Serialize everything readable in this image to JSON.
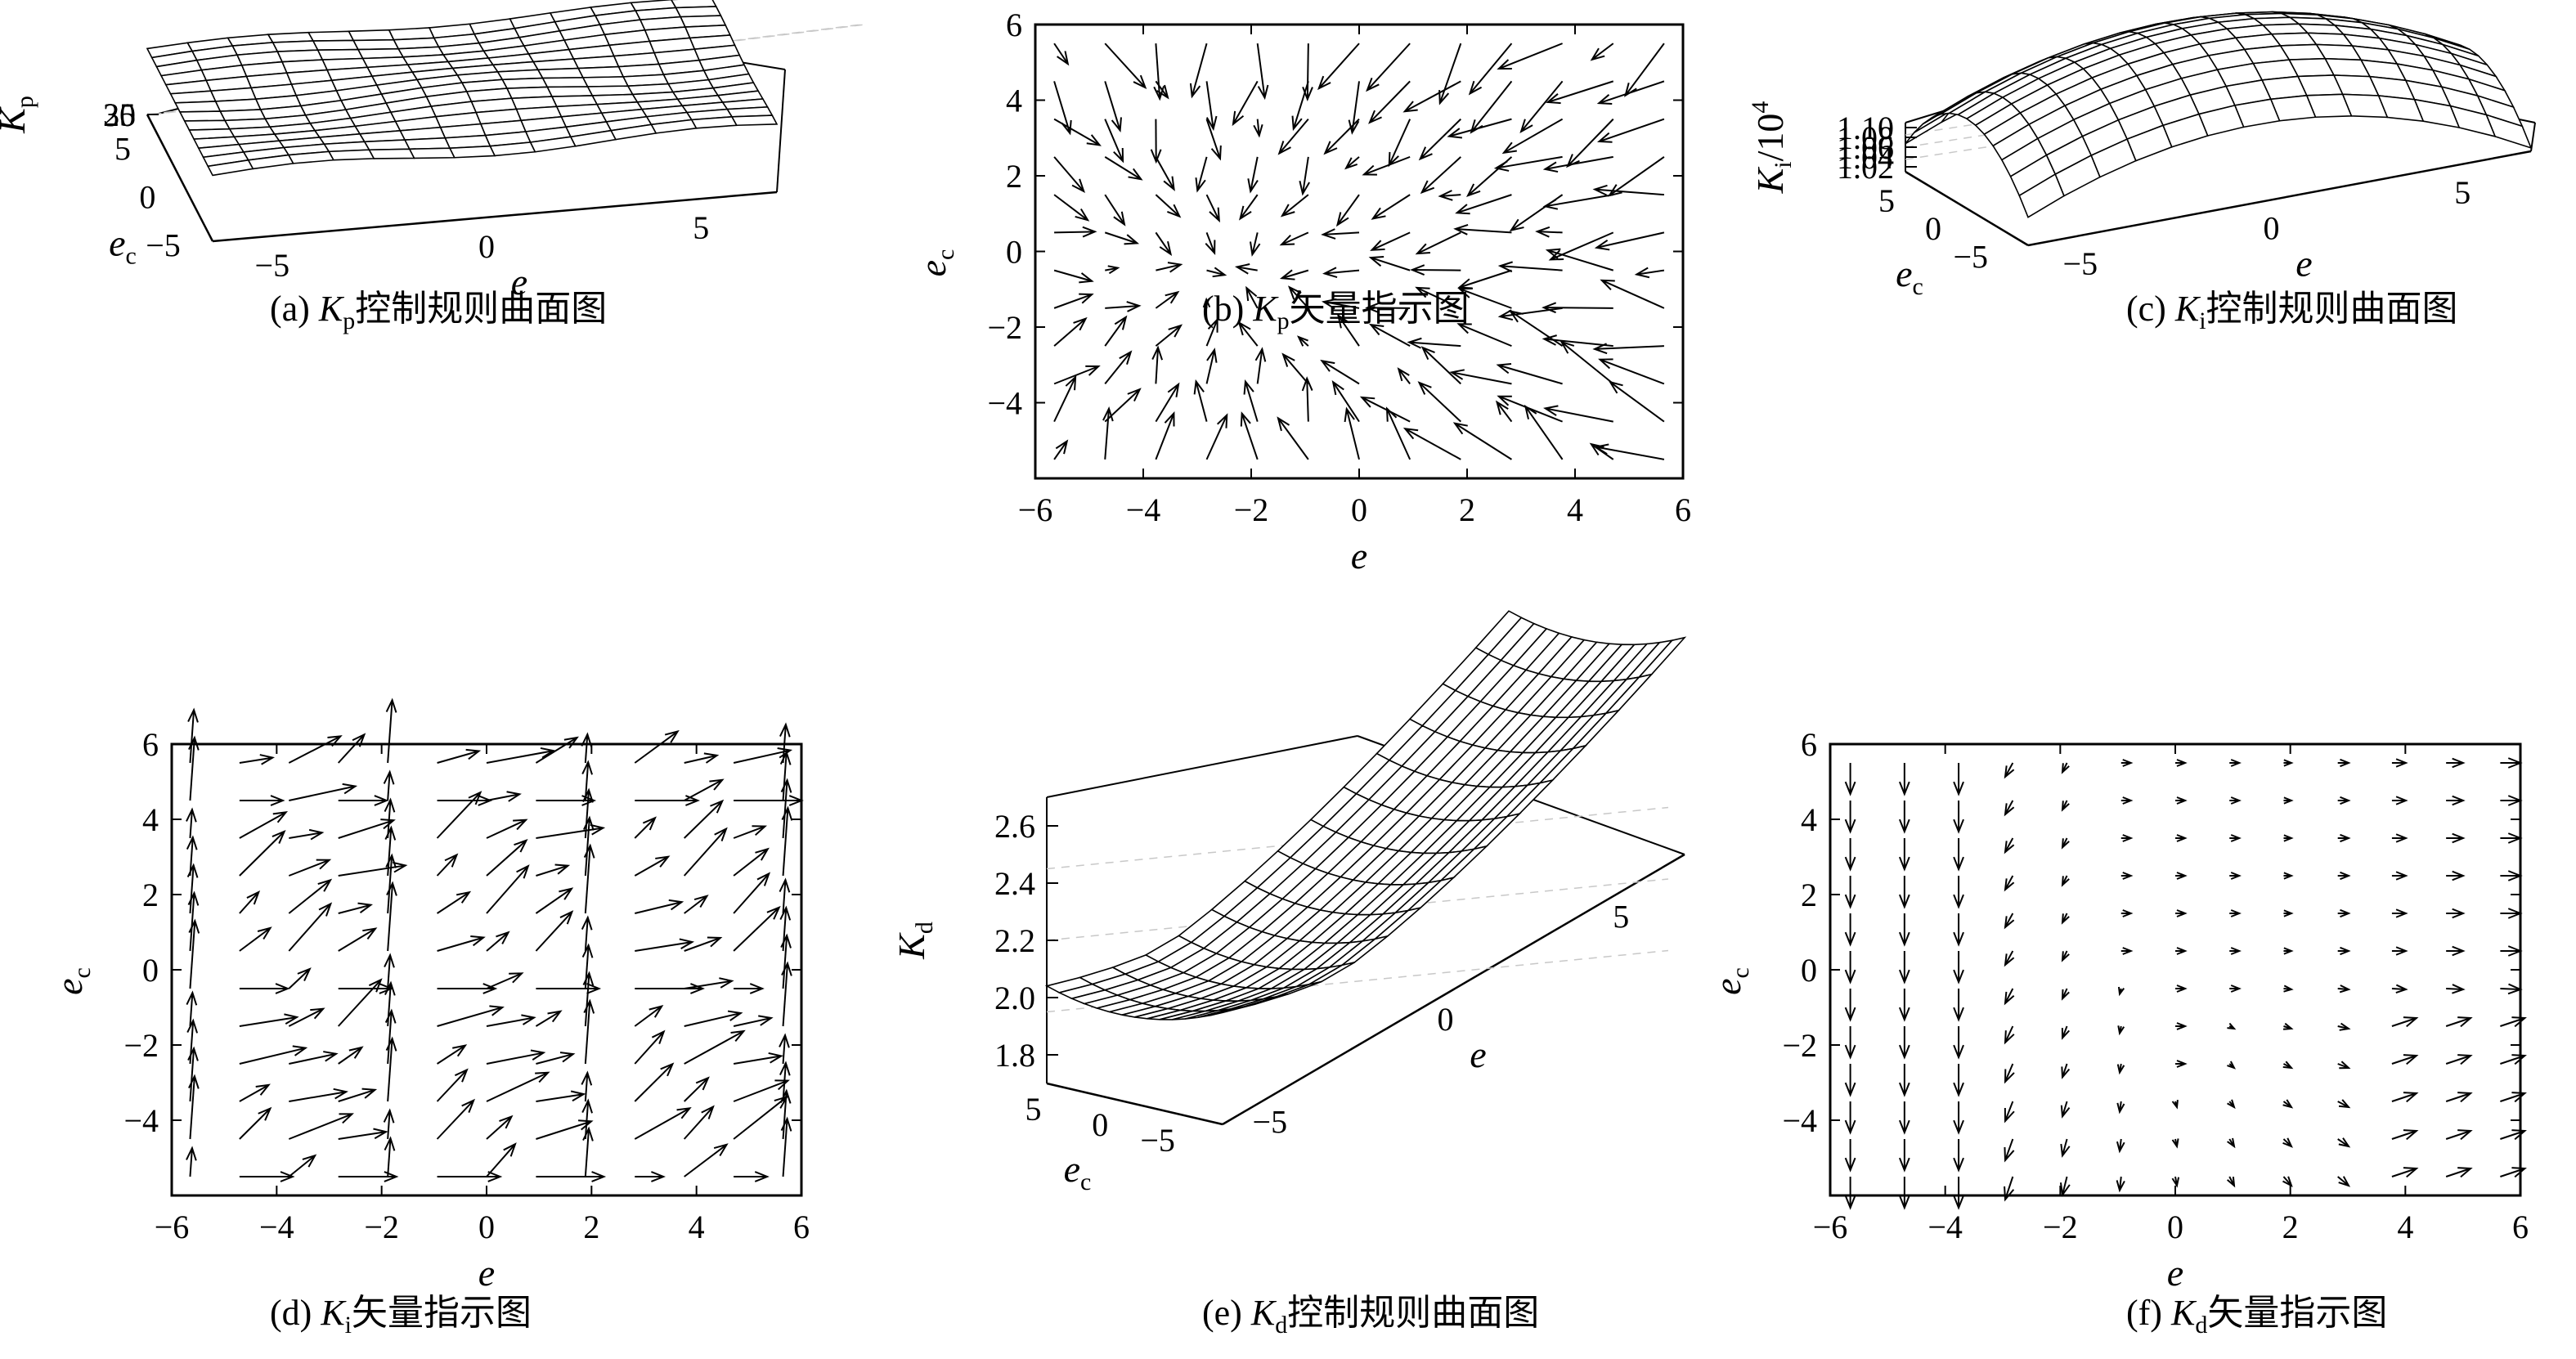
{
  "figure": {
    "background": "#ffffff",
    "ink": "#000000",
    "grid_color": "#c8c8c8"
  },
  "chart_data": [
    {
      "id": "a",
      "type": "surface",
      "caption_prefix": "(a) ",
      "caption_symbol": "K",
      "caption_subscript": "p",
      "caption_text": "控制规则曲面图",
      "z_label": "K",
      "z_label_sub": "p",
      "x_label": "e",
      "y_label": "e",
      "y_label_sub": "c",
      "x_ticks": [
        "−5",
        "0",
        "5"
      ],
      "y_ticks": [
        "5",
        "0",
        "−5"
      ],
      "z_ticks": [
        "35",
        "30",
        "25"
      ],
      "zlim": [
        25,
        36
      ],
      "xlim": [
        -6,
        6
      ],
      "ylim": [
        -6,
        6
      ],
      "grid": true,
      "shape": "flat surface at ~30 with ripples"
    },
    {
      "id": "b",
      "type": "quiver",
      "caption_prefix": "(b) ",
      "caption_symbol": "K",
      "caption_subscript": "p",
      "caption_text": "矢量指示图",
      "x_label": "e",
      "y_label": "e",
      "y_label_sub": "c",
      "xlim": [
        -6,
        6
      ],
      "ylim": [
        -6,
        6
      ],
      "x_ticks": [
        "−6",
        "−4",
        "−2",
        "0",
        "2",
        "4",
        "6"
      ],
      "y_ticks": [
        "6",
        "4",
        "2",
        "0",
        "−2",
        "−4"
      ],
      "x_tick_values": [
        -6,
        -4,
        -2,
        0,
        2,
        4,
        6
      ],
      "y_tick_values": [
        6,
        4,
        2,
        0,
        -2,
        -4
      ],
      "field": "convergent toward (-2.5, -0.5)",
      "sink": [
        -2.5,
        -0.5
      ]
    },
    {
      "id": "c",
      "type": "surface",
      "caption_prefix": "(c) ",
      "caption_symbol": "K",
      "caption_subscript": "i",
      "caption_text": "控制规则曲面图",
      "z_label": "K",
      "z_label_sub": "i",
      "z_label_suffix": "/10",
      "z_label_exp": "4",
      "x_label": "e",
      "y_label": "e",
      "y_label_sub": "c",
      "x_ticks": [
        "−5",
        "0",
        "5"
      ],
      "y_ticks": [
        "5",
        "0",
        "−5"
      ],
      "z_ticks": [
        "1.10",
        "1.08",
        "1.06",
        "1.04",
        "1.02"
      ],
      "zlim": [
        1.0,
        1.12
      ],
      "xlim": [
        -6,
        6
      ],
      "ylim": [
        -6,
        6
      ],
      "grid": true,
      "shape": "dome, peak ~1.11 near center"
    },
    {
      "id": "d",
      "type": "quiver",
      "caption_prefix": "(d) ",
      "caption_symbol": "K",
      "caption_subscript": "i",
      "caption_text": "矢量指示图",
      "x_label": "e",
      "y_label": "e",
      "y_label_sub": "c",
      "xlim": [
        -6,
        6
      ],
      "ylim": [
        -6,
        6
      ],
      "x_ticks": [
        "−6",
        "−4",
        "−2",
        "0",
        "2",
        "4",
        "6"
      ],
      "y_ticks": [
        "6",
        "4",
        "2",
        "0",
        "−2",
        "−4"
      ],
      "x_tick_values": [
        -6,
        -4,
        -2,
        0,
        2,
        4,
        6
      ],
      "y_tick_values": [
        6,
        4,
        2,
        0,
        -2,
        -4
      ],
      "field": "uniform up-right"
    },
    {
      "id": "e",
      "type": "surface",
      "caption_prefix": "(e) ",
      "caption_symbol": "K",
      "caption_subscript": "d",
      "caption_text": "控制规则曲面图",
      "z_label": "K",
      "z_label_sub": "d",
      "x_label": "e",
      "y_label": "e",
      "y_label_sub": "c",
      "x_ticks": [
        "−5",
        "0",
        "5"
      ],
      "y_ticks": [
        "5",
        "0",
        "−5"
      ],
      "z_ticks": [
        "2.6",
        "2.4",
        "2.2",
        "2.0",
        "1.8"
      ],
      "zlim": [
        1.7,
        2.8
      ],
      "xlim": [
        -6,
        6
      ],
      "ylim": [
        -6,
        6
      ],
      "grid": true,
      "shape": "saddle / valley, min ~1.8, edges ~2.6"
    },
    {
      "id": "f",
      "type": "quiver",
      "caption_prefix": "(f) ",
      "caption_symbol": "K",
      "caption_subscript": "d",
      "caption_text": "矢量指示图",
      "x_label": "e",
      "y_label": "e",
      "y_label_sub": "c",
      "xlim": [
        -6,
        6
      ],
      "ylim": [
        -6,
        6
      ],
      "x_ticks": [
        "−6",
        "−4",
        "−2",
        "0",
        "2",
        "4",
        "6"
      ],
      "y_ticks": [
        "6",
        "4",
        "2",
        "0",
        "−2",
        "−4"
      ],
      "x_tick_values": [
        -6,
        -4,
        -2,
        0,
        2,
        4,
        6
      ],
      "y_tick_values": [
        6,
        4,
        2,
        0,
        -2,
        -4
      ],
      "field": "small arrows, rightward at right, downward at left"
    }
  ]
}
